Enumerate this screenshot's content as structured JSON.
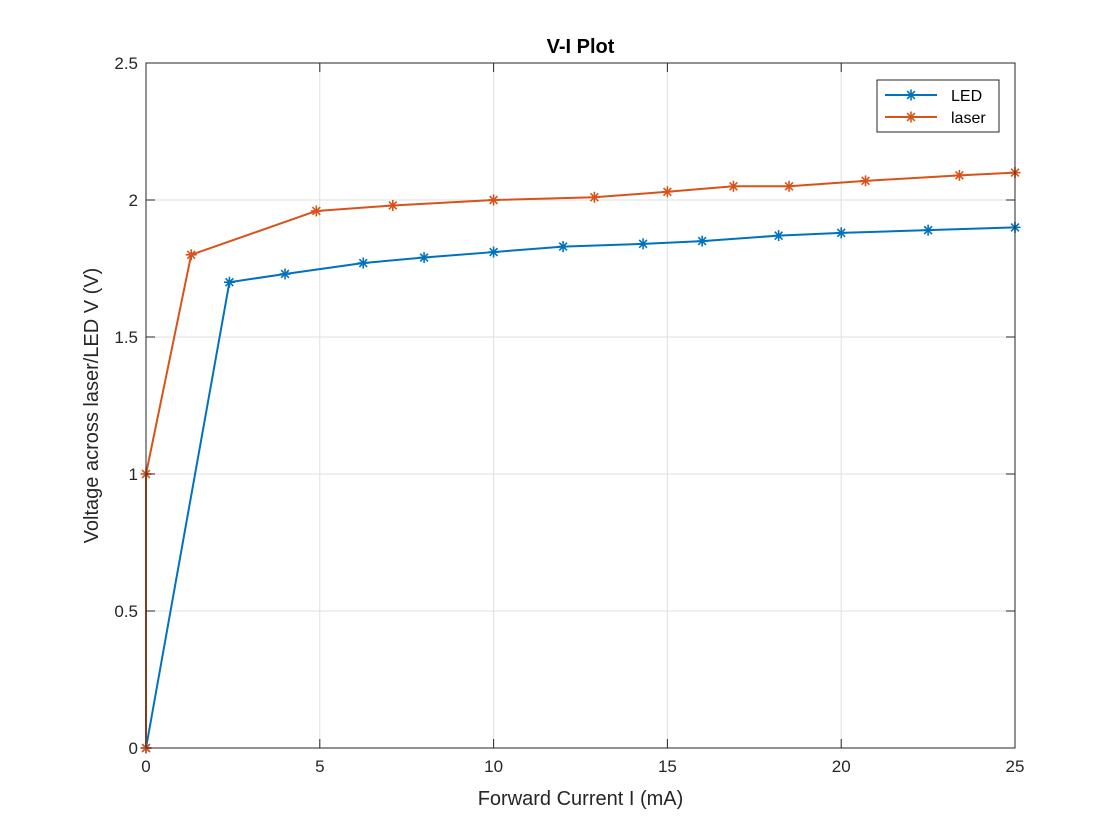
{
  "chart_data": {
    "type": "line",
    "title": "V-I Plot",
    "xlabel": "Forward Current I (mA)",
    "ylabel": "Voltage across laser/LED V (V)",
    "xlim": [
      0,
      25
    ],
    "ylim": [
      0,
      2.5
    ],
    "xticks": [
      0,
      5,
      10,
      15,
      20,
      25
    ],
    "yticks": [
      0,
      0.5,
      1,
      1.5,
      2,
      2.5
    ],
    "xtick_labels": [
      "0",
      "5",
      "10",
      "15",
      "20",
      "25"
    ],
    "ytick_labels": [
      "0",
      "0.5",
      "1",
      "1.5",
      "2",
      "2.5"
    ],
    "grid": true,
    "legend_position": "top-right",
    "marker": "asterisk",
    "series": [
      {
        "name": "LED",
        "color": "#0072BD",
        "x": [
          0,
          2.4,
          4.0,
          6.25,
          8.0,
          10.0,
          12.0,
          14.3,
          16.0,
          18.2,
          20.0,
          22.5,
          25.0
        ],
        "y": [
          0,
          1.7,
          1.73,
          1.77,
          1.79,
          1.81,
          1.83,
          1.84,
          1.85,
          1.87,
          1.88,
          1.89,
          1.9
        ]
      },
      {
        "name": "laser",
        "color": "#D95319",
        "x": [
          0,
          0,
          1.3,
          4.9,
          7.1,
          10.0,
          12.9,
          15.0,
          16.9,
          18.5,
          20.7,
          23.4,
          25.0
        ],
        "y": [
          0,
          1.0,
          1.8,
          1.96,
          1.98,
          2.0,
          2.01,
          2.03,
          2.05,
          2.05,
          2.07,
          2.09,
          2.1
        ]
      }
    ]
  }
}
